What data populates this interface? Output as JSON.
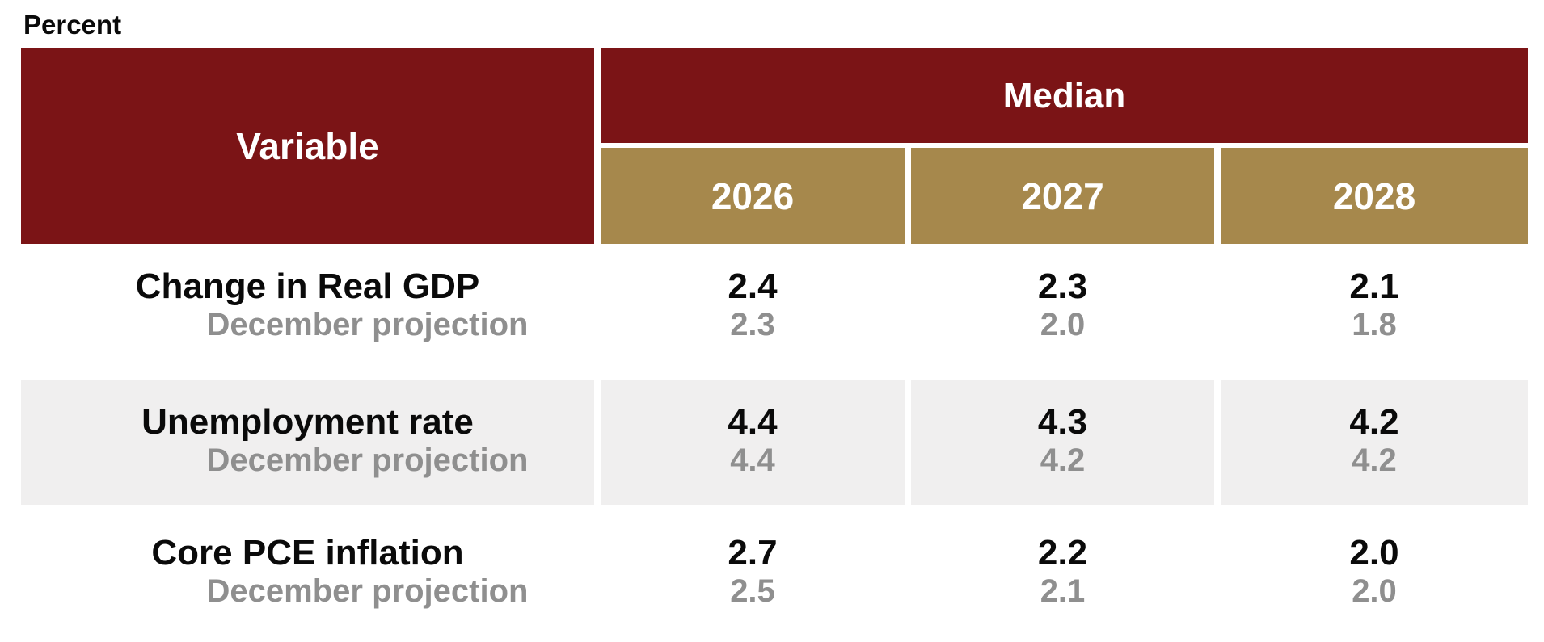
{
  "unit_label": "Percent",
  "table": {
    "variable_header": "Variable",
    "median_header": "Median",
    "years": [
      "2026",
      "2027",
      "2028"
    ],
    "projection_label": "December projection",
    "rows": [
      {
        "variable": "Change in Real GDP",
        "projection_label": "December projection",
        "median": [
          "2.4",
          "2.3",
          "2.1"
        ],
        "december": [
          "2.3",
          "2.0",
          "1.8"
        ],
        "shaded": false
      },
      {
        "variable": "Unemployment rate",
        "projection_label": "December projection",
        "median": [
          "4.4",
          "4.3",
          "4.2"
        ],
        "december": [
          "4.4",
          "4.2",
          "4.2"
        ],
        "shaded": true
      },
      {
        "variable": "Core PCE inflation",
        "projection_label": "December projection",
        "median": [
          "2.7",
          "2.2",
          "2.0"
        ],
        "december": [
          "2.5",
          "2.1",
          "2.0"
        ],
        "shaded": false
      }
    ]
  },
  "colors": {
    "header_maroon": "#7b1416",
    "year_tan": "#a6884c",
    "shaded_row": "#f0efef",
    "secondary_text": "#8f8f8f",
    "primary_text": "#0a0a0a"
  },
  "chart_data": {
    "type": "table",
    "title": "Percent",
    "column_group_header": "Median",
    "columns": [
      "Variable",
      "2026",
      "2027",
      "2028"
    ],
    "rows": [
      {
        "variable": "Change in Real GDP",
        "median": {
          "2026": 2.4,
          "2027": 2.3,
          "2028": 2.1
        },
        "december_projection": {
          "2026": 2.3,
          "2027": 2.0,
          "2028": 1.8
        }
      },
      {
        "variable": "Unemployment rate",
        "median": {
          "2026": 4.4,
          "2027": 4.3,
          "2028": 4.2
        },
        "december_projection": {
          "2026": 4.4,
          "2027": 4.2,
          "2028": 4.2
        }
      },
      {
        "variable": "Core PCE inflation",
        "median": {
          "2026": 2.7,
          "2027": 2.2,
          "2028": 2.0
        },
        "december_projection": {
          "2026": 2.5,
          "2027": 2.1,
          "2028": 2.0
        }
      }
    ],
    "layout": {
      "shaded_rows": [
        1
      ],
      "grid": false,
      "legend": "none"
    }
  }
}
